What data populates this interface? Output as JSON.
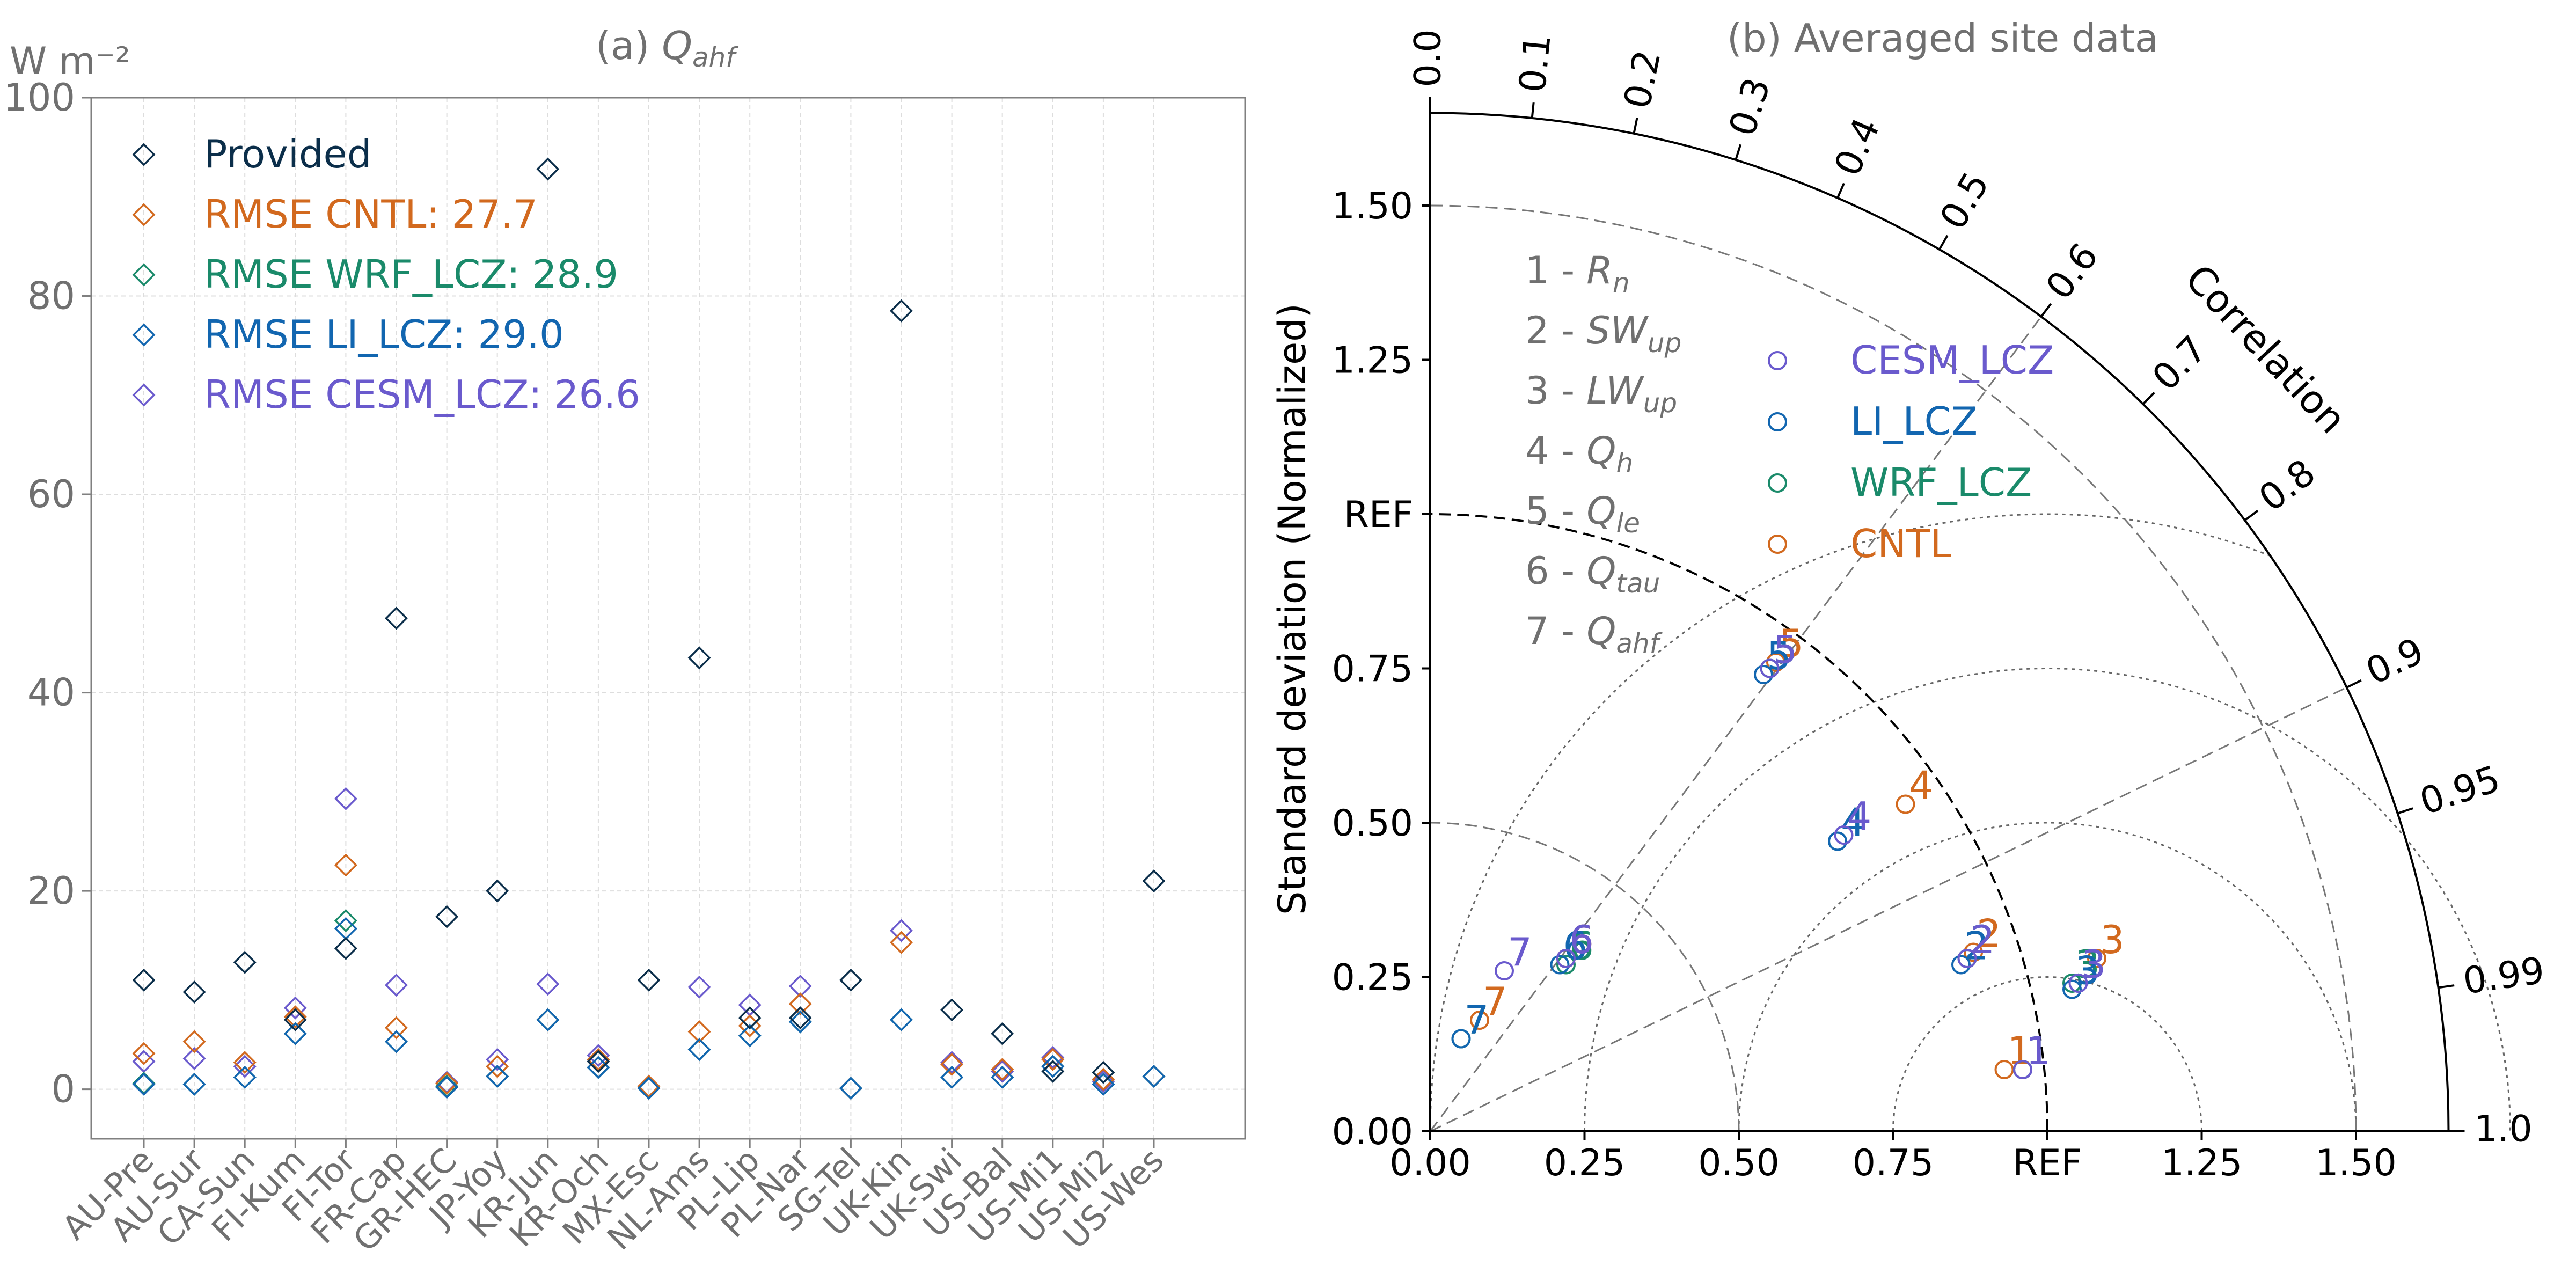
{
  "colors": {
    "Provided": "#0b2e4a",
    "CNTL": "#d2691e",
    "WRF_LCZ": "#1a8a6a",
    "LI_LCZ": "#1266b0",
    "CESM_LCZ": "#6a5acd",
    "gray_text": "#707070",
    "axis": "#808080",
    "black": "#000000"
  },
  "chart_data": [
    {
      "type": "scatter",
      "title": "(a) ",
      "title_symbol": "Q",
      "title_sub": "ahf",
      "ylabel": "W m⁻²",
      "ylim": [
        -5,
        100
      ],
      "yticks": [
        "0",
        "20",
        "40",
        "60",
        "80",
        "100"
      ],
      "grid": true,
      "legend_position": "upper-left",
      "categories": [
        "AU-Pre",
        "AU-Sur",
        "CA-Sun",
        "FI-Kum",
        "FI-Tor",
        "FR-Cap",
        "GR-HEC",
        "JP-Yoy",
        "KR-Jun",
        "KR-Och",
        "MX-Esc",
        "NL-Ams",
        "PL-Lip",
        "PL-Nar",
        "SG-Tel",
        "UK-Kin",
        "UK-Swi",
        "US-Bal",
        "US-Mi1",
        "US-Mi2",
        "US-Wes"
      ],
      "series": [
        {
          "key": "Provided",
          "name": "Provided",
          "values": [
            11.0,
            9.8,
            12.8,
            7.0,
            14.2,
            47.5,
            17.4,
            20.0,
            92.8,
            2.8,
            11.0,
            43.5,
            7.2,
            7.2,
            11.0,
            78.5,
            8.0,
            5.6,
            1.8,
            1.7,
            21.0
          ]
        },
        {
          "key": "CNTL",
          "name": "RMSE CNTL: 27.7",
          "values": [
            3.6,
            4.8,
            2.7,
            7.3,
            22.6,
            6.2,
            0.6,
            2.3,
            7.0,
            3.0,
            0.3,
            5.8,
            6.4,
            8.6,
            0.1,
            14.8,
            2.5,
            2.0,
            3.0,
            1.0,
            1.3
          ]
        },
        {
          "key": "WRF_LCZ",
          "name": "RMSE WRF_LCZ: 28.9",
          "values": [
            0.6,
            0.5,
            1.2,
            5.6,
            17.0,
            4.8,
            0.3,
            1.3,
            7.0,
            2.2,
            0.1,
            4.0,
            5.4,
            6.8,
            0.1,
            7.0,
            1.2,
            1.2,
            2.3,
            0.5,
            1.3
          ]
        },
        {
          "key": "LI_LCZ",
          "name": "RMSE LI_LCZ: 29.0",
          "values": [
            0.5,
            0.5,
            1.2,
            5.6,
            16.2,
            4.8,
            0.2,
            1.3,
            7.0,
            2.2,
            0.1,
            4.0,
            5.4,
            6.8,
            0.1,
            7.0,
            1.2,
            1.2,
            2.3,
            0.5,
            1.3
          ]
        },
        {
          "key": "CESM_LCZ",
          "name": "RMSE CESM_LCZ: 26.6",
          "values": [
            2.8,
            3.1,
            2.3,
            8.2,
            29.3,
            10.5,
            0.7,
            3.0,
            10.6,
            3.4,
            0.1,
            10.3,
            8.5,
            10.4,
            0.1,
            16.0,
            2.7,
            1.8,
            3.2,
            0.8,
            1.3
          ]
        }
      ]
    },
    {
      "type": "scatter",
      "subtype": "taylor",
      "title": "(b) Averaged site data",
      "ylabel": "Standard deviation (Normalized)",
      "corr_label": "Correlation",
      "ref_label": "REF",
      "x_ticks": [
        "0.00",
        "0.25",
        "0.50",
        "0.75",
        "REF",
        "1.25",
        "1.50"
      ],
      "y_ticks": [
        "0.00",
        "0.25",
        "0.50",
        "0.75",
        "REF",
        "1.25",
        "1.50"
      ],
      "corr_ticks": [
        "0.0",
        "0.1",
        "0.2",
        "0.3",
        "0.4",
        "0.5",
        "0.6",
        "0.7",
        "0.8",
        "0.9",
        "0.95",
        "0.99",
        "1.0"
      ],
      "std_max": 1.65,
      "variable_legend": [
        {
          "num": "1 - ",
          "sym": "R",
          "sub": "n"
        },
        {
          "num": "2 - ",
          "sym": "SW",
          "sub": "up"
        },
        {
          "num": "3 - ",
          "sym": "LW",
          "sub": "up"
        },
        {
          "num": "4 - ",
          "sym": "Q",
          "sub": "h"
        },
        {
          "num": "5 - ",
          "sym": "Q",
          "sub": "le"
        },
        {
          "num": "6 - ",
          "sym": "Q",
          "sub": "tau"
        },
        {
          "num": "7 - ",
          "sym": "Q",
          "sub": "ahf"
        }
      ],
      "model_legend": [
        {
          "key": "CESM_LCZ",
          "name": "CESM_LCZ"
        },
        {
          "key": "LI_LCZ",
          "name": "LI_LCZ"
        },
        {
          "key": "WRF_LCZ",
          "name": "WRF_LCZ"
        },
        {
          "key": "CNTL",
          "name": "CNTL"
        }
      ],
      "points": [
        {
          "model": "CNTL",
          "var": "1",
          "x": 0.93,
          "y": 0.1
        },
        {
          "model": "CNTL",
          "var": "2",
          "x": 0.88,
          "y": 0.29
        },
        {
          "model": "CNTL",
          "var": "3",
          "x": 1.08,
          "y": 0.28
        },
        {
          "model": "CNTL",
          "var": "4",
          "x": 0.77,
          "y": 0.53
        },
        {
          "model": "CNTL",
          "var": "5",
          "x": 0.56,
          "y": 0.76
        },
        {
          "model": "CNTL",
          "var": "6",
          "x": 0.22,
          "y": 0.28
        },
        {
          "model": "CNTL",
          "var": "7",
          "x": 0.08,
          "y": 0.18
        },
        {
          "model": "WRF_LCZ",
          "var": "1",
          "x": 0.96,
          "y": 0.1
        },
        {
          "model": "WRF_LCZ",
          "var": "2",
          "x": 0.87,
          "y": 0.28
        },
        {
          "model": "WRF_LCZ",
          "var": "3",
          "x": 1.04,
          "y": 0.24
        },
        {
          "model": "WRF_LCZ",
          "var": "4",
          "x": 0.66,
          "y": 0.47
        },
        {
          "model": "WRF_LCZ",
          "var": "5",
          "x": 0.55,
          "y": 0.75
        },
        {
          "model": "WRF_LCZ",
          "var": "6",
          "x": 0.22,
          "y": 0.27
        },
        {
          "model": "WRF_LCZ",
          "var": "7",
          "x": 0.05,
          "y": 0.15
        },
        {
          "model": "LI_LCZ",
          "var": "1",
          "x": 0.96,
          "y": 0.1
        },
        {
          "model": "LI_LCZ",
          "var": "2",
          "x": 0.86,
          "y": 0.27
        },
        {
          "model": "LI_LCZ",
          "var": "3",
          "x": 1.04,
          "y": 0.23
        },
        {
          "model": "LI_LCZ",
          "var": "4",
          "x": 0.66,
          "y": 0.47
        },
        {
          "model": "LI_LCZ",
          "var": "5",
          "x": 0.54,
          "y": 0.74
        },
        {
          "model": "LI_LCZ",
          "var": "6",
          "x": 0.21,
          "y": 0.27
        },
        {
          "model": "LI_LCZ",
          "var": "7",
          "x": 0.05,
          "y": 0.15
        },
        {
          "model": "CESM_LCZ",
          "var": "1",
          "x": 0.96,
          "y": 0.1
        },
        {
          "model": "CESM_LCZ",
          "var": "2",
          "x": 0.87,
          "y": 0.28
        },
        {
          "model": "CESM_LCZ",
          "var": "3",
          "x": 1.05,
          "y": 0.24
        },
        {
          "model": "CESM_LCZ",
          "var": "4",
          "x": 0.67,
          "y": 0.48
        },
        {
          "model": "CESM_LCZ",
          "var": "5",
          "x": 0.55,
          "y": 0.75
        },
        {
          "model": "CESM_LCZ",
          "var": "6",
          "x": 0.22,
          "y": 0.28
        },
        {
          "model": "CESM_LCZ",
          "var": "7",
          "x": 0.12,
          "y": 0.26
        }
      ]
    }
  ]
}
